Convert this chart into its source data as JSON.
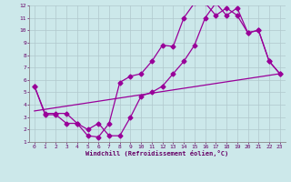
{
  "xlabel": "Windchill (Refroidissement éolien,°C)",
  "bg_color": "#cce8ea",
  "grid_color": "#b0c8cc",
  "line_color": "#990099",
  "xlim": [
    -0.5,
    23.5
  ],
  "ylim": [
    1,
    12
  ],
  "xticks": [
    0,
    1,
    2,
    3,
    4,
    5,
    6,
    7,
    8,
    9,
    10,
    11,
    12,
    13,
    14,
    15,
    16,
    17,
    18,
    19,
    20,
    21,
    22,
    23
  ],
  "yticks": [
    1,
    2,
    3,
    4,
    5,
    6,
    7,
    8,
    9,
    10,
    11,
    12
  ],
  "line1_x": [
    0,
    1,
    2,
    3,
    4,
    5,
    6,
    7,
    8,
    9,
    10,
    11,
    12,
    13,
    14,
    15,
    16,
    17,
    18,
    19,
    20,
    21,
    22,
    23
  ],
  "line1_y": [
    5.5,
    3.2,
    3.2,
    2.5,
    2.5,
    1.5,
    1.4,
    2.5,
    5.8,
    6.3,
    6.5,
    7.5,
    8.8,
    8.7,
    11.0,
    12.2,
    12.2,
    11.2,
    11.8,
    11.2,
    9.8,
    10.0,
    7.5,
    6.5
  ],
  "line2_x": [
    0,
    1,
    2,
    3,
    4,
    5,
    6,
    7,
    8,
    9,
    10,
    11,
    12,
    13,
    14,
    15,
    16,
    17,
    18,
    19,
    20,
    21,
    22,
    23
  ],
  "line2_y": [
    5.5,
    3.3,
    3.3,
    3.3,
    2.5,
    2.0,
    2.5,
    1.5,
    1.5,
    3.0,
    4.7,
    5.0,
    5.5,
    6.5,
    7.5,
    8.8,
    11.0,
    12.2,
    11.2,
    11.8,
    9.8,
    10.0,
    7.5,
    6.5
  ],
  "line3_x": [
    0,
    23
  ],
  "line3_y": [
    3.5,
    6.5
  ],
  "markersize": 2.5,
  "linewidth": 0.9
}
